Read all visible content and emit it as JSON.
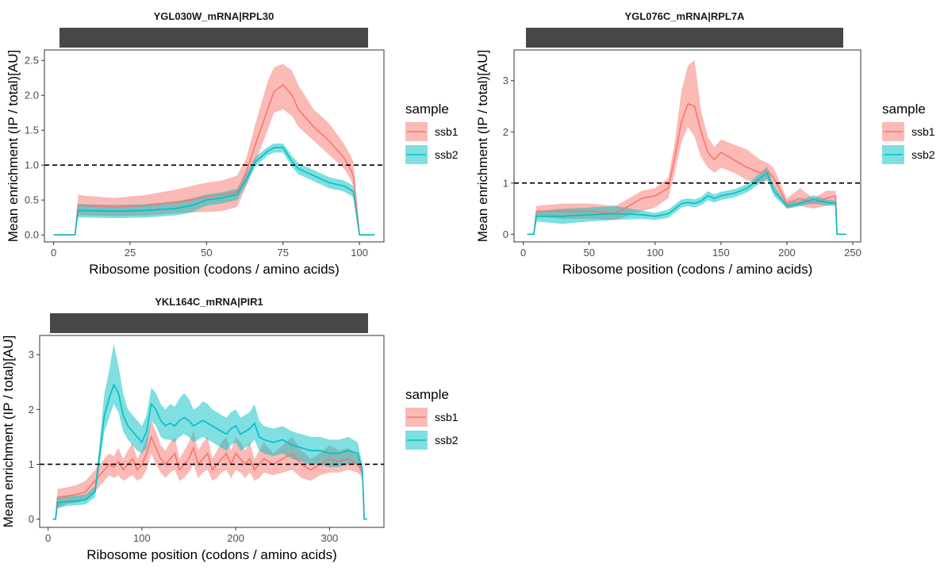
{
  "legend_title": "sample",
  "ylabel": "Mean enrichment (IP / total)[AU]",
  "xlabel": "Ribosome position (codons / amino acids)",
  "reference_line": 1,
  "colors": {
    "ssb1": "#F8766D",
    "ssb2": "#00BFC4",
    "strip": "#474747",
    "refline": "#000000"
  },
  "chart_data": [
    {
      "type": "line",
      "title": "YGL030W_mRNA|RPL30",
      "xlabel": "Ribosome position (codons / amino acids)",
      "ylabel": "Mean enrichment (IP / total)[AU]",
      "xlim": [
        -3,
        108
      ],
      "ylim": [
        -0.1,
        2.65
      ],
      "xticks": [
        0,
        25,
        50,
        75,
        100
      ],
      "yticks": [
        0.0,
        0.5,
        1.0,
        1.5,
        2.0,
        2.5
      ],
      "ytick_labels": [
        "0.0",
        "0.5",
        "1.0",
        "1.5",
        "2.0",
        "2.5"
      ],
      "legend": "right",
      "series": [
        {
          "name": "ssb1",
          "x": [
            0,
            7,
            8,
            10,
            20,
            30,
            40,
            45,
            50,
            55,
            60,
            63,
            66,
            70,
            72,
            75,
            78,
            80,
            85,
            90,
            95,
            97,
            98,
            100,
            105
          ],
          "y": [
            0,
            0,
            0.42,
            0.42,
            0.4,
            0.42,
            0.47,
            0.5,
            0.55,
            0.57,
            0.62,
            0.9,
            1.3,
            1.8,
            2.05,
            2.15,
            2.0,
            1.8,
            1.55,
            1.35,
            1.1,
            0.95,
            0.85,
            0,
            0
          ],
          "lower": [
            0,
            0,
            0.28,
            0.28,
            0.27,
            0.28,
            0.31,
            0.32,
            0.33,
            0.34,
            0.4,
            0.7,
            1.05,
            1.5,
            1.75,
            1.8,
            1.7,
            1.55,
            1.35,
            1.15,
            0.95,
            0.8,
            0.7,
            0,
            0
          ],
          "upper": [
            0,
            0,
            0.58,
            0.56,
            0.53,
            0.57,
            0.65,
            0.7,
            0.75,
            0.78,
            0.85,
            1.1,
            1.6,
            2.2,
            2.4,
            2.45,
            2.35,
            2.15,
            1.8,
            1.6,
            1.3,
            1.15,
            1.05,
            0,
            0
          ]
        },
        {
          "name": "ssb2",
          "x": [
            0,
            7,
            8,
            10,
            20,
            30,
            40,
            45,
            50,
            55,
            60,
            63,
            66,
            70,
            72,
            75,
            78,
            80,
            85,
            90,
            95,
            97,
            98,
            100,
            105
          ],
          "y": [
            0,
            0,
            0.35,
            0.35,
            0.34,
            0.35,
            0.38,
            0.42,
            0.5,
            0.53,
            0.58,
            0.8,
            1.05,
            1.2,
            1.25,
            1.25,
            1.05,
            0.95,
            0.85,
            0.75,
            0.7,
            0.65,
            0.62,
            0,
            0
          ],
          "lower": [
            0,
            0,
            0.25,
            0.25,
            0.24,
            0.25,
            0.28,
            0.32,
            0.42,
            0.45,
            0.5,
            0.72,
            0.98,
            1.14,
            1.18,
            1.18,
            0.97,
            0.87,
            0.77,
            0.67,
            0.62,
            0.57,
            0.54,
            0,
            0
          ],
          "upper": [
            0,
            0,
            0.45,
            0.44,
            0.43,
            0.44,
            0.48,
            0.52,
            0.58,
            0.61,
            0.66,
            0.88,
            1.12,
            1.26,
            1.31,
            1.31,
            1.13,
            1.03,
            0.93,
            0.83,
            0.78,
            0.73,
            0.7,
            0,
            0
          ]
        }
      ]
    },
    {
      "type": "line",
      "title": "YGL076C_mRNA|RPL7A",
      "xlabel": "Ribosome position (codons / amino acids)",
      "ylabel": "Mean enrichment (IP / total)[AU]",
      "xlim": [
        -7,
        256
      ],
      "ylim": [
        -0.15,
        3.6
      ],
      "xticks": [
        0,
        50,
        100,
        150,
        200,
        250
      ],
      "yticks": [
        0,
        1,
        2,
        3
      ],
      "ytick_labels": [
        "0",
        "1",
        "2",
        "3"
      ],
      "legend": "right",
      "series": [
        {
          "name": "ssb1",
          "x": [
            3,
            8,
            10,
            30,
            50,
            70,
            90,
            100,
            110,
            115,
            120,
            125,
            130,
            135,
            140,
            145,
            150,
            160,
            170,
            180,
            185,
            190,
            200,
            210,
            220,
            230,
            237,
            238,
            240,
            245
          ],
          "y": [
            0,
            0,
            0.45,
            0.45,
            0.45,
            0.4,
            0.7,
            0.75,
            0.9,
            1.5,
            2.2,
            2.55,
            2.5,
            2.0,
            1.6,
            1.45,
            1.6,
            1.45,
            1.3,
            1.2,
            1.25,
            1.1,
            0.6,
            0.7,
            0.6,
            0.7,
            0.75,
            0,
            0,
            0
          ],
          "lower": [
            0,
            0,
            0.35,
            0.3,
            0.3,
            0.28,
            0.45,
            0.52,
            0.7,
            1.2,
            1.8,
            2.1,
            1.9,
            1.5,
            1.3,
            1.2,
            1.3,
            1.2,
            1.05,
            1.0,
            1.05,
            0.9,
            0.5,
            0.55,
            0.5,
            0.55,
            0.6,
            0,
            0,
            0
          ],
          "upper": [
            0,
            0,
            0.55,
            0.6,
            0.6,
            0.55,
            0.85,
            0.9,
            1.1,
            1.8,
            2.8,
            3.3,
            3.4,
            2.4,
            1.9,
            1.7,
            1.85,
            1.75,
            1.65,
            1.45,
            1.4,
            1.3,
            0.7,
            0.9,
            0.7,
            0.85,
            0.85,
            0,
            0,
            0
          ]
        },
        {
          "name": "ssb2",
          "x": [
            3,
            8,
            10,
            30,
            50,
            70,
            90,
            100,
            110,
            115,
            120,
            125,
            130,
            135,
            140,
            145,
            150,
            160,
            170,
            180,
            185,
            190,
            200,
            210,
            220,
            230,
            237,
            238,
            240,
            245
          ],
          "y": [
            0,
            0,
            0.35,
            0.35,
            0.38,
            0.4,
            0.38,
            0.35,
            0.4,
            0.5,
            0.6,
            0.62,
            0.6,
            0.65,
            0.75,
            0.7,
            0.75,
            0.8,
            0.9,
            1.1,
            1.2,
            0.85,
            0.55,
            0.6,
            0.68,
            0.62,
            0.6,
            0,
            0,
            0
          ],
          "lower": [
            0,
            0,
            0.25,
            0.2,
            0.25,
            0.28,
            0.3,
            0.28,
            0.32,
            0.42,
            0.52,
            0.55,
            0.52,
            0.57,
            0.66,
            0.62,
            0.67,
            0.72,
            0.82,
            1.0,
            1.08,
            0.75,
            0.5,
            0.55,
            0.6,
            0.56,
            0.55,
            0,
            0,
            0
          ],
          "upper": [
            0,
            0,
            0.45,
            0.5,
            0.52,
            0.55,
            0.46,
            0.42,
            0.48,
            0.58,
            0.68,
            0.7,
            0.68,
            0.73,
            0.84,
            0.78,
            0.83,
            0.88,
            0.98,
            1.2,
            1.32,
            0.95,
            0.6,
            0.66,
            0.76,
            0.68,
            0.66,
            0,
            0,
            0
          ]
        }
      ]
    },
    {
      "type": "line",
      "title": "YKL164C_mRNA|PIR1",
      "xlabel": "Ribosome position (codons / amino acids)",
      "ylabel": "Mean enrichment (IP / total)[AU]",
      "xlim": [
        -9,
        358
      ],
      "ylim": [
        -0.15,
        3.35
      ],
      "xticks": [
        0,
        100,
        200,
        300
      ],
      "yticks": [
        0,
        1,
        2,
        3
      ],
      "ytick_labels": [
        "0",
        "1",
        "2",
        "3"
      ],
      "legend": "right",
      "series": [
        {
          "name": "ssb1",
          "x": [
            5,
            8,
            10,
            20,
            30,
            40,
            50,
            55,
            60,
            65,
            70,
            75,
            80,
            85,
            90,
            95,
            100,
            105,
            110,
            115,
            120,
            125,
            130,
            135,
            140,
            145,
            150,
            155,
            160,
            165,
            170,
            175,
            180,
            185,
            190,
            195,
            200,
            205,
            210,
            215,
            220,
            225,
            230,
            240,
            250,
            260,
            270,
            280,
            290,
            300,
            310,
            320,
            330,
            335,
            337,
            340
          ],
          "y": [
            0,
            0,
            0.4,
            0.42,
            0.45,
            0.5,
            0.7,
            0.8,
            0.9,
            1.0,
            0.95,
            1.05,
            0.9,
            1.0,
            1.1,
            0.9,
            1.0,
            1.2,
            1.5,
            1.3,
            1.1,
            1.0,
            1.1,
            1.2,
            0.9,
            1.0,
            1.1,
            1.3,
            1.0,
            1.1,
            1.2,
            0.9,
            1.0,
            1.1,
            1.2,
            1.0,
            1.2,
            1.1,
            1.0,
            1.1,
            0.9,
            1.0,
            1.1,
            1.0,
            1.1,
            1.2,
            1.0,
            0.9,
            1.0,
            1.1,
            1.05,
            1.1,
            1.0,
            0.85,
            0,
            0
          ],
          "lower": [
            0,
            0,
            0.2,
            0.28,
            0.3,
            0.35,
            0.5,
            0.6,
            0.7,
            0.8,
            0.75,
            0.8,
            0.7,
            0.75,
            0.8,
            0.7,
            0.75,
            0.9,
            1.2,
            1.0,
            0.85,
            0.75,
            0.85,
            0.9,
            0.7,
            0.75,
            0.85,
            1.0,
            0.75,
            0.85,
            0.9,
            0.7,
            0.75,
            0.85,
            0.9,
            0.75,
            0.9,
            0.85,
            0.75,
            0.85,
            0.7,
            0.75,
            0.85,
            0.8,
            0.85,
            0.9,
            0.75,
            0.7,
            0.8,
            0.85,
            0.85,
            0.9,
            0.85,
            0.75,
            0,
            0
          ],
          "upper": [
            0,
            0,
            0.55,
            0.58,
            0.62,
            0.7,
            0.9,
            1.0,
            1.1,
            1.2,
            1.15,
            1.3,
            1.1,
            1.25,
            1.4,
            1.1,
            1.25,
            1.5,
            1.8,
            1.6,
            1.35,
            1.25,
            1.4,
            1.5,
            1.1,
            1.25,
            1.4,
            1.6,
            1.25,
            1.4,
            1.5,
            1.1,
            1.25,
            1.4,
            1.5,
            1.25,
            1.5,
            1.4,
            1.25,
            1.4,
            1.1,
            1.25,
            1.4,
            1.2,
            1.35,
            1.5,
            1.25,
            1.1,
            1.2,
            1.35,
            1.25,
            1.3,
            1.15,
            0.95,
            0,
            0
          ]
        },
        {
          "name": "ssb2",
          "x": [
            5,
            8,
            10,
            20,
            30,
            40,
            50,
            55,
            60,
            65,
            70,
            75,
            80,
            85,
            90,
            95,
            100,
            105,
            110,
            115,
            120,
            125,
            130,
            135,
            140,
            145,
            150,
            155,
            160,
            165,
            170,
            175,
            180,
            185,
            190,
            195,
            200,
            205,
            210,
            215,
            220,
            225,
            230,
            240,
            250,
            260,
            270,
            280,
            290,
            300,
            310,
            320,
            330,
            335,
            337,
            340
          ],
          "y": [
            0,
            0,
            0.3,
            0.32,
            0.33,
            0.35,
            0.5,
            1.2,
            1.9,
            2.2,
            2.45,
            2.3,
            1.9,
            1.7,
            1.6,
            1.5,
            1.4,
            1.6,
            2.1,
            2.0,
            1.8,
            1.7,
            1.75,
            1.7,
            1.8,
            1.85,
            1.8,
            1.7,
            1.75,
            1.8,
            1.75,
            1.7,
            1.65,
            1.6,
            1.55,
            1.65,
            1.7,
            1.55,
            1.6,
            1.65,
            1.75,
            1.5,
            1.45,
            1.4,
            1.45,
            1.35,
            1.3,
            1.25,
            1.25,
            1.2,
            1.2,
            1.25,
            1.2,
            0.9,
            0,
            0
          ],
          "lower": [
            0,
            0,
            0.2,
            0.24,
            0.25,
            0.27,
            0.4,
            1.0,
            1.6,
            1.85,
            2.1,
            1.95,
            1.6,
            1.45,
            1.35,
            1.25,
            1.2,
            1.3,
            1.8,
            1.7,
            1.5,
            1.45,
            1.45,
            1.4,
            1.5,
            1.55,
            1.5,
            1.4,
            1.45,
            1.5,
            1.45,
            1.4,
            1.35,
            1.3,
            1.25,
            1.35,
            1.4,
            1.25,
            1.3,
            1.35,
            1.45,
            1.25,
            1.2,
            1.15,
            1.2,
            1.1,
            1.05,
            1.0,
            1.0,
            0.95,
            0.95,
            1.0,
            1.0,
            0.8,
            0,
            0
          ],
          "upper": [
            0,
            0,
            0.4,
            0.42,
            0.43,
            0.45,
            0.6,
            1.4,
            2.3,
            2.7,
            3.2,
            2.8,
            2.3,
            2.0,
            1.9,
            1.8,
            1.7,
            1.9,
            2.4,
            2.3,
            2.1,
            2.0,
            2.1,
            2.05,
            2.2,
            2.3,
            2.2,
            2.0,
            2.05,
            2.15,
            2.1,
            2.0,
            1.95,
            1.9,
            1.85,
            1.95,
            2.0,
            1.85,
            1.9,
            1.95,
            2.1,
            1.8,
            1.7,
            1.65,
            1.7,
            1.6,
            1.55,
            1.5,
            1.5,
            1.45,
            1.45,
            1.5,
            1.4,
            1.0,
            0,
            0
          ]
        }
      ]
    }
  ]
}
